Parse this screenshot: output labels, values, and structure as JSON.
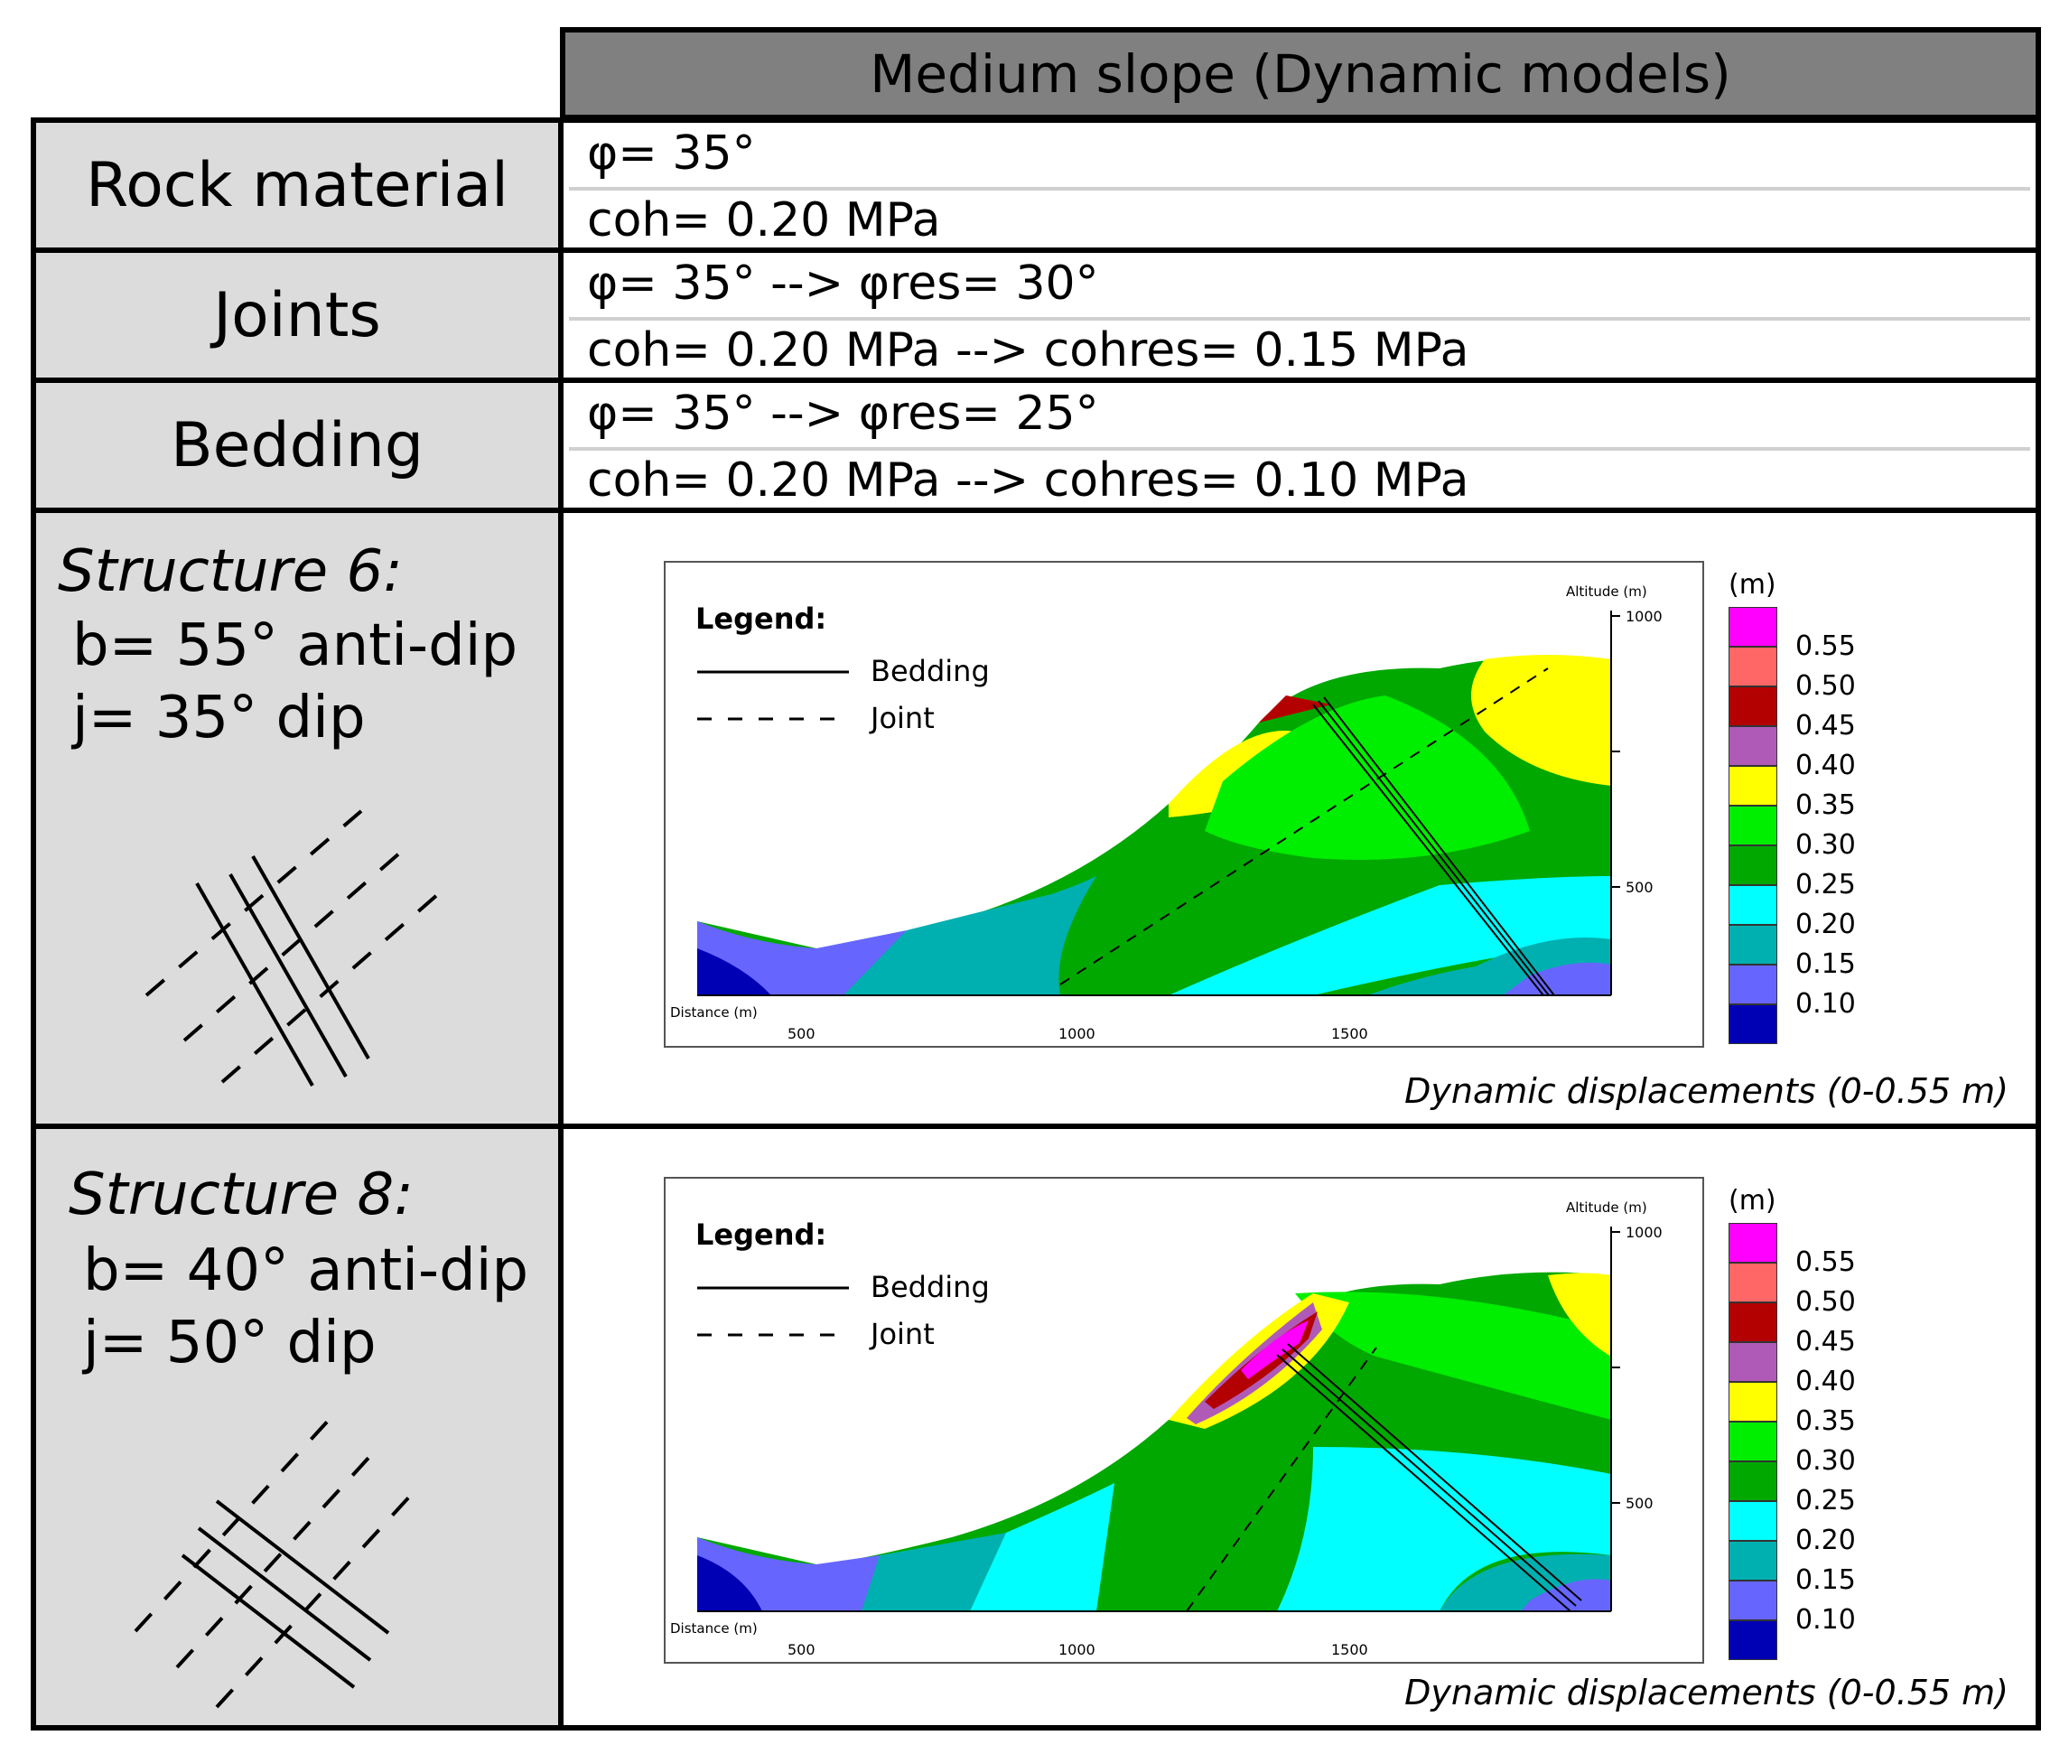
{
  "header": {
    "title": "Medium slope (Dynamic models)"
  },
  "rows": [
    {
      "label": "Rock material",
      "lines": [
        "φ= 35°",
        "coh= 0.20 MPa"
      ]
    },
    {
      "label": "Joints",
      "lines": [
        "φ= 35° --> φres= 30°",
        "coh= 0.20 MPa --> cohres= 0.15 MPa"
      ]
    },
    {
      "label": "Bedding",
      "lines": [
        "φ= 35° --> φres= 25°",
        "coh= 0.20 MPa --> cohres= 0.10 MPa"
      ]
    }
  ],
  "structures": [
    {
      "title": "Structure 6:",
      "bedding": "b= 55° anti-dip",
      "joint": "j= 35° dip"
    },
    {
      "title": "Structure 8:",
      "bedding": "b= 40° anti-dip",
      "joint": "j= 50° dip"
    }
  ],
  "plot": {
    "legend_title": "Legend:",
    "legend_bedding": "Bedding",
    "legend_joint": "Joint",
    "y_axis_label": "Altitude (m)",
    "x_axis_label": "Distance (m)",
    "x_ticks": [
      "500",
      "1000",
      "1500"
    ],
    "y_ticks": [
      "1000",
      "500"
    ],
    "caption": "Dynamic displacements (0-0.55 m)"
  },
  "colorbar": {
    "unit": "(m)",
    "levels": [
      {
        "label": "0.55",
        "color": "#ff00ff"
      },
      {
        "label": "0.50",
        "color": "#ff6666"
      },
      {
        "label": "0.45",
        "color": "#b30000"
      },
      {
        "label": "0.40",
        "color": "#b05ab8"
      },
      {
        "label": "0.35",
        "color": "#ffff00"
      },
      {
        "label": "0.30",
        "color": "#00ee00"
      },
      {
        "label": "0.25",
        "color": "#00a800"
      },
      {
        "label": "0.20",
        "color": "#00ffff"
      },
      {
        "label": "0.15",
        "color": "#00b0b0"
      },
      {
        "label": "0.10",
        "color": "#6666ff"
      },
      {
        "label": "",
        "color": "#0000b4"
      }
    ]
  }
}
